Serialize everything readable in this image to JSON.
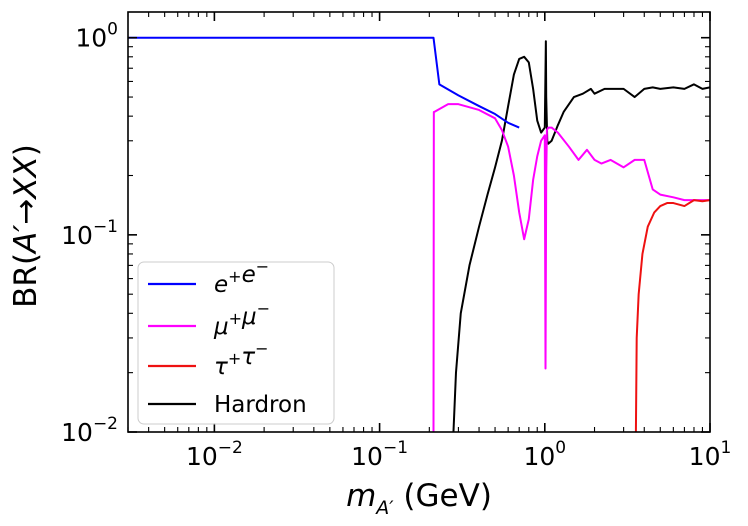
{
  "chart_data": {
    "type": "line",
    "title": "",
    "xlabel": {
      "main": "m",
      "sub": "A′",
      "unit": " (GeV)"
    },
    "ylabel": {
      "pre": "BR(",
      "ital": "A′",
      "arrow": "→",
      "ital2": "XX",
      "post": ")"
    },
    "xscale": "log",
    "yscale": "log",
    "xlim": [
      0.003,
      10
    ],
    "ylim": [
      0.01,
      1.35
    ],
    "grid": false,
    "legend_loc": "lower-left",
    "x_ticks": [
      {
        "value": 0.01,
        "base": "10",
        "exp": "−2"
      },
      {
        "value": 0.1,
        "base": "10",
        "exp": "−1"
      },
      {
        "value": 1,
        "base": "10",
        "exp": "0"
      },
      {
        "value": 10,
        "base": "10",
        "exp": "1"
      }
    ],
    "y_ticks": [
      {
        "value": 0.01,
        "base": "10",
        "exp": "−2"
      },
      {
        "value": 0.1,
        "base": "10",
        "exp": "−1"
      },
      {
        "value": 1,
        "base": "10",
        "exp": "0"
      }
    ],
    "series": [
      {
        "name": "e+e−",
        "label_base": [
          "e",
          "e"
        ],
        "label_sup": [
          "+",
          "−"
        ],
        "italic": true,
        "color": "#0000ff",
        "x": [
          0.003,
          0.1,
          0.2,
          0.212,
          0.23,
          0.3,
          0.4,
          0.5,
          0.6,
          0.7
        ],
        "y": [
          1.0,
          1.0,
          1.0,
          1.0,
          0.58,
          0.51,
          0.45,
          0.41,
          0.37,
          0.35
        ]
      },
      {
        "name": "μ+μ−",
        "label_base": [
          "μ",
          "μ"
        ],
        "label_sup": [
          "+",
          "−"
        ],
        "italic": true,
        "color": "#ff00ff",
        "x": [
          0.212,
          0.213,
          0.214,
          0.26,
          0.3,
          0.4,
          0.5,
          0.55,
          0.6,
          0.65,
          0.7,
          0.75,
          0.8,
          0.85,
          0.9,
          0.95,
          1.0,
          1.01,
          1.02,
          1.03,
          1.05,
          1.1,
          1.2,
          1.4,
          1.6,
          1.8,
          2.0,
          2.2,
          2.5,
          3.0,
          3.5,
          4.0,
          4.5,
          5.0,
          6.0,
          7.0,
          8.0,
          10.0
        ],
        "y": [
          0.01,
          0.42,
          0.42,
          0.46,
          0.46,
          0.43,
          0.39,
          0.34,
          0.28,
          0.2,
          0.13,
          0.095,
          0.12,
          0.19,
          0.25,
          0.3,
          0.32,
          0.021,
          0.2,
          0.34,
          0.35,
          0.35,
          0.33,
          0.28,
          0.24,
          0.27,
          0.24,
          0.23,
          0.24,
          0.22,
          0.24,
          0.24,
          0.17,
          0.16,
          0.155,
          0.15,
          0.15,
          0.15
        ]
      },
      {
        "name": "τ+τ−",
        "label_base": [
          "τ",
          "τ"
        ],
        "label_sup": [
          "+",
          "−"
        ],
        "italic": true,
        "color": "#ee1111",
        "x": [
          3.56,
          3.6,
          3.7,
          3.9,
          4.2,
          4.6,
          5.0,
          5.5,
          6.0,
          7.0,
          8.0,
          9.0,
          10.0
        ],
        "y": [
          0.01,
          0.03,
          0.05,
          0.08,
          0.11,
          0.13,
          0.14,
          0.145,
          0.145,
          0.14,
          0.15,
          0.148,
          0.15
        ]
      },
      {
        "name": "Hardron",
        "label_base": [
          "Hardron"
        ],
        "label_sup": [],
        "italic": false,
        "color": "#000000",
        "x": [
          0.28,
          0.29,
          0.31,
          0.35,
          0.4,
          0.45,
          0.5,
          0.55,
          0.6,
          0.65,
          0.7,
          0.75,
          0.8,
          0.85,
          0.9,
          0.95,
          1.0,
          1.015,
          1.02,
          1.035,
          1.05,
          1.1,
          1.2,
          1.3,
          1.5,
          1.7,
          1.9,
          2.0,
          2.3,
          2.6,
          3.0,
          3.5,
          4.0,
          4.5,
          5.0,
          6.0,
          7.0,
          8.0,
          9.0,
          10.0
        ],
        "y": [
          0.01,
          0.02,
          0.04,
          0.07,
          0.11,
          0.16,
          0.22,
          0.3,
          0.45,
          0.65,
          0.78,
          0.8,
          0.75,
          0.55,
          0.38,
          0.33,
          0.35,
          0.96,
          0.5,
          0.3,
          0.29,
          0.3,
          0.36,
          0.42,
          0.5,
          0.52,
          0.55,
          0.52,
          0.55,
          0.55,
          0.55,
          0.5,
          0.55,
          0.56,
          0.55,
          0.56,
          0.55,
          0.58,
          0.55,
          0.56
        ]
      }
    ]
  }
}
